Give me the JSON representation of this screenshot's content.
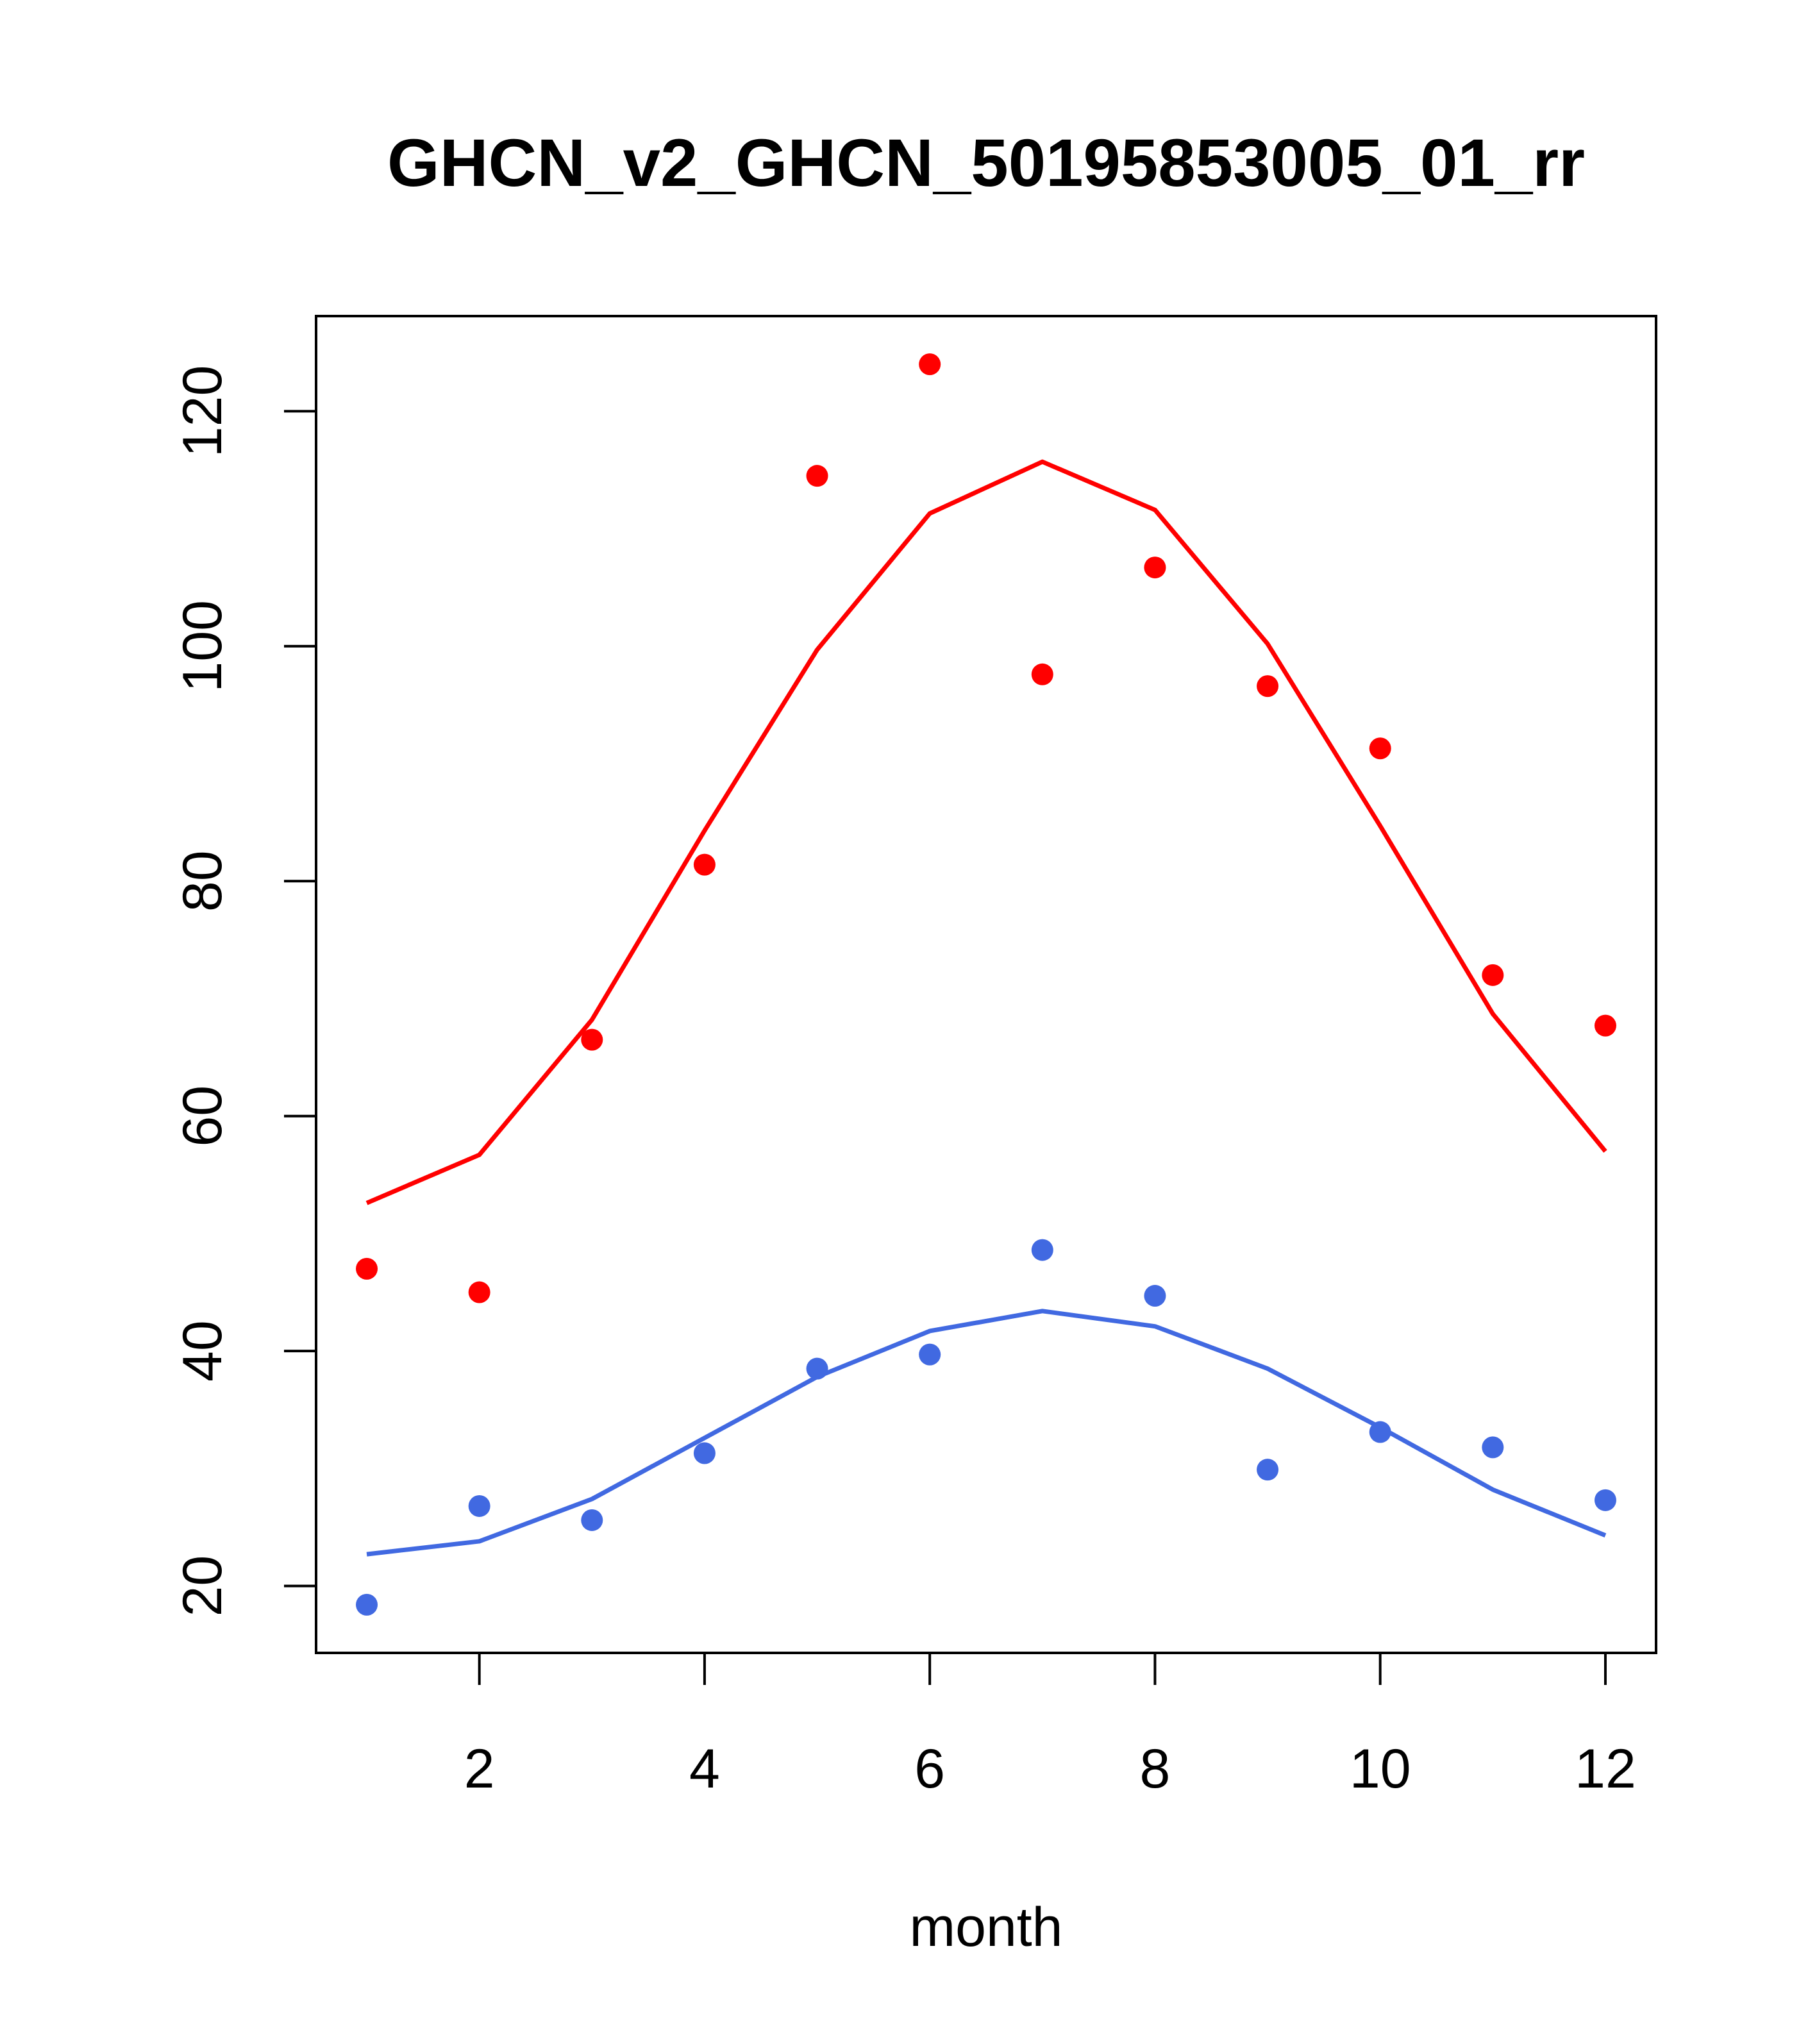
{
  "chart_data": {
    "type": "scatter",
    "title": "GHCN_v2_GHCN_50195853005_01_rr",
    "xlabel": "month",
    "ylabel": "",
    "xlim": [
      0.55,
      12.45
    ],
    "ylim": [
      14.3,
      128.1
    ],
    "x_ticks": [
      2,
      4,
      6,
      8,
      10,
      12
    ],
    "y_ticks": [
      20,
      40,
      60,
      80,
      100,
      120
    ],
    "grid": false,
    "legend": "none",
    "x": [
      1,
      2,
      3,
      4,
      5,
      6,
      7,
      8,
      9,
      10,
      11,
      12
    ],
    "series": [
      {
        "color": "#ff0000",
        "points": [
          47.0,
          45.0,
          66.5,
          81.4,
          114.5,
          124.0,
          97.6,
          106.7,
          96.6,
          91.3,
          72.0,
          67.7
        ],
        "line": [
          52.6,
          56.7,
          68.2,
          84.3,
          99.7,
          111.3,
          115.7,
          111.6,
          100.2,
          84.7,
          68.7,
          57.0
        ]
      },
      {
        "color": "#4169e1",
        "points": [
          18.4,
          26.8,
          25.6,
          31.3,
          38.5,
          39.7,
          48.6,
          44.7,
          29.9,
          33.1,
          31.8,
          27.3
        ],
        "line": [
          22.7,
          23.8,
          27.4,
          32.6,
          37.8,
          41.7,
          43.4,
          42.1,
          38.5,
          33.5,
          28.2,
          24.3
        ]
      }
    ]
  }
}
